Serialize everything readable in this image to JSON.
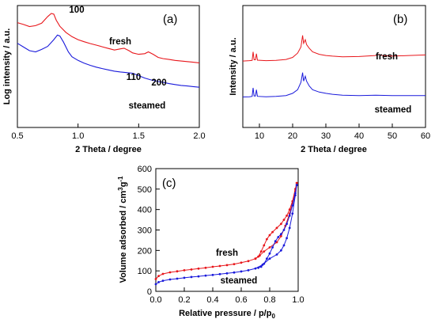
{
  "chart_data": [
    {
      "panel": "(a)",
      "type": "line",
      "xlabel": "2 Theta / degree",
      "ylabel": "Log intensity / a.u.",
      "xlim": [
        0.5,
        2.0
      ],
      "xticks": [
        "0.5",
        "1.0",
        "1.5",
        "2.0"
      ],
      "yticks_shown": false,
      "annotations": [
        "100",
        "110",
        "200"
      ],
      "series": [
        {
          "name": "fresh",
          "color": "#e8161b",
          "points": [
            [
              0.5,
              0.86
            ],
            [
              0.55,
              0.845
            ],
            [
              0.6,
              0.828
            ],
            [
              0.65,
              0.835
            ],
            [
              0.7,
              0.855
            ],
            [
              0.75,
              0.91
            ],
            [
              0.78,
              0.935
            ],
            [
              0.8,
              0.93
            ],
            [
              0.82,
              0.88
            ],
            [
              0.85,
              0.83
            ],
            [
              0.9,
              0.78
            ],
            [
              0.95,
              0.745
            ],
            [
              1.0,
              0.72
            ],
            [
              1.05,
              0.703
            ],
            [
              1.1,
              0.688
            ],
            [
              1.15,
              0.675
            ],
            [
              1.2,
              0.662
            ],
            [
              1.25,
              0.648
            ],
            [
              1.3,
              0.635
            ],
            [
              1.35,
              0.645
            ],
            [
              1.38,
              0.65
            ],
            [
              1.42,
              0.63
            ],
            [
              1.45,
              0.612
            ],
            [
              1.5,
              0.6
            ],
            [
              1.55,
              0.605
            ],
            [
              1.58,
              0.62
            ],
            [
              1.62,
              0.6
            ],
            [
              1.66,
              0.575
            ],
            [
              1.7,
              0.565
            ],
            [
              1.75,
              0.558
            ],
            [
              1.8,
              0.55
            ],
            [
              1.85,
              0.545
            ],
            [
              1.9,
              0.54
            ],
            [
              1.95,
              0.535
            ],
            [
              2.0,
              0.53
            ]
          ]
        },
        {
          "name": "steamed",
          "color": "#1a1adb",
          "points": [
            [
              0.5,
              0.69
            ],
            [
              0.55,
              0.66
            ],
            [
              0.6,
              0.63
            ],
            [
              0.65,
              0.62
            ],
            [
              0.7,
              0.64
            ],
            [
              0.75,
              0.665
            ],
            [
              0.8,
              0.72
            ],
            [
              0.83,
              0.758
            ],
            [
              0.85,
              0.75
            ],
            [
              0.88,
              0.7
            ],
            [
              0.92,
              0.62
            ],
            [
              0.95,
              0.58
            ],
            [
              1.0,
              0.55
            ],
            [
              1.05,
              0.527
            ],
            [
              1.1,
              0.51
            ],
            [
              1.15,
              0.495
            ],
            [
              1.2,
              0.483
            ],
            [
              1.25,
              0.472
            ],
            [
              1.3,
              0.462
            ],
            [
              1.35,
              0.455
            ],
            [
              1.4,
              0.45
            ],
            [
              1.45,
              0.445
            ],
            [
              1.5,
              0.425
            ],
            [
              1.55,
              0.405
            ],
            [
              1.6,
              0.39
            ],
            [
              1.65,
              0.38
            ],
            [
              1.7,
              0.37
            ],
            [
              1.75,
              0.36
            ],
            [
              1.8,
              0.352
            ],
            [
              1.85,
              0.345
            ],
            [
              1.9,
              0.34
            ],
            [
              1.95,
              0.335
            ],
            [
              2.0,
              0.33
            ]
          ]
        }
      ]
    },
    {
      "panel": "(b)",
      "type": "line",
      "xlabel": "2 Theta / degree",
      "ylabel": "Intensity / a.u.",
      "xlim": [
        5,
        60
      ],
      "xticks": [
        "10",
        "20",
        "30",
        "40",
        "50",
        "60"
      ],
      "yticks_shown": false,
      "series": [
        {
          "name": "fresh",
          "color": "#e8161b",
          "points": [
            [
              5,
              0.545
            ],
            [
              7,
              0.548
            ],
            [
              7.8,
              0.55
            ],
            [
              8.1,
              0.62
            ],
            [
              8.4,
              0.555
            ],
            [
              8.8,
              0.555
            ],
            [
              9.1,
              0.605
            ],
            [
              9.4,
              0.552
            ],
            [
              12,
              0.548
            ],
            [
              15,
              0.55
            ],
            [
              18,
              0.558
            ],
            [
              20,
              0.575
            ],
            [
              21.5,
              0.61
            ],
            [
              22.5,
              0.66
            ],
            [
              23,
              0.755
            ],
            [
              23.3,
              0.69
            ],
            [
              23.8,
              0.72
            ],
            [
              24.2,
              0.68
            ],
            [
              25,
              0.65
            ],
            [
              26,
              0.62
            ],
            [
              28,
              0.6
            ],
            [
              30,
              0.59
            ],
            [
              32,
              0.585
            ],
            [
              35,
              0.58
            ],
            [
              40,
              0.582
            ],
            [
              45,
              0.59
            ],
            [
              46,
              0.6
            ],
            [
              47,
              0.59
            ],
            [
              50,
              0.585
            ],
            [
              55,
              0.59
            ],
            [
              60,
              0.595
            ]
          ]
        },
        {
          "name": "steamed",
          "color": "#1a1adb",
          "points": [
            [
              5,
              0.25
            ],
            [
              7,
              0.252
            ],
            [
              7.8,
              0.255
            ],
            [
              8.1,
              0.325
            ],
            [
              8.4,
              0.258
            ],
            [
              8.8,
              0.258
            ],
            [
              9.1,
              0.31
            ],
            [
              9.4,
              0.255
            ],
            [
              12,
              0.252
            ],
            [
              15,
              0.255
            ],
            [
              18,
              0.262
            ],
            [
              20,
              0.28
            ],
            [
              21.5,
              0.31
            ],
            [
              22.5,
              0.37
            ],
            [
              23,
              0.45
            ],
            [
              23.3,
              0.38
            ],
            [
              23.8,
              0.42
            ],
            [
              24.2,
              0.38
            ],
            [
              25,
              0.34
            ],
            [
              26,
              0.31
            ],
            [
              28,
              0.29
            ],
            [
              30,
              0.28
            ],
            [
              32,
              0.272
            ],
            [
              35,
              0.265
            ],
            [
              40,
              0.262
            ],
            [
              45,
              0.265
            ],
            [
              50,
              0.262
            ],
            [
              55,
              0.262
            ],
            [
              60,
              0.262
            ]
          ]
        }
      ]
    },
    {
      "panel": "(c)",
      "type": "line",
      "xlabel": "Relative pressure / p/p",
      "xlabel_subscript": "0",
      "ylabel": "Volume adsorbed / cm",
      "ylabel_sup1": "3",
      "ylabel_mid": "g",
      "ylabel_sup2": "-1",
      "xlim": [
        0.0,
        1.0
      ],
      "ylim": [
        0,
        600
      ],
      "xticks": [
        "0.0",
        "0.2",
        "0.4",
        "0.6",
        "0.8",
        "1.0"
      ],
      "yticks": [
        "0",
        "100",
        "200",
        "300",
        "400",
        "500",
        "600"
      ],
      "series": [
        {
          "name": "fresh",
          "color": "#e8161b",
          "adsorption": [
            [
              0.0,
              60
            ],
            [
              0.02,
              75
            ],
            [
              0.05,
              85
            ],
            [
              0.1,
              93
            ],
            [
              0.15,
              98
            ],
            [
              0.2,
              103
            ],
            [
              0.25,
              107
            ],
            [
              0.3,
              111
            ],
            [
              0.35,
              115
            ],
            [
              0.4,
              120
            ],
            [
              0.45,
              124
            ],
            [
              0.5,
              128
            ],
            [
              0.55,
              133
            ],
            [
              0.6,
              140
            ],
            [
              0.65,
              148
            ],
            [
              0.7,
              160
            ],
            [
              0.73,
              175
            ],
            [
              0.76,
              195
            ],
            [
              0.8,
              215
            ],
            [
              0.85,
              240
            ],
            [
              0.88,
              270
            ],
            [
              0.91,
              320
            ],
            [
              0.94,
              380
            ],
            [
              0.96,
              430
            ],
            [
              0.98,
              490
            ],
            [
              0.99,
              530
            ]
          ],
          "desorption": [
            [
              0.99,
              530
            ],
            [
              0.98,
              500
            ],
            [
              0.96,
              440
            ],
            [
              0.94,
              400
            ],
            [
              0.92,
              370
            ],
            [
              0.9,
              350
            ],
            [
              0.88,
              330
            ],
            [
              0.85,
              310
            ],
            [
              0.82,
              290
            ],
            [
              0.8,
              275
            ],
            [
              0.78,
              255
            ],
            [
              0.76,
              225
            ],
            [
              0.74,
              195
            ],
            [
              0.72,
              170
            ],
            [
              0.7,
              160
            ]
          ]
        },
        {
          "name": "steamed",
          "color": "#1a1adb",
          "adsorption": [
            [
              0.0,
              35
            ],
            [
              0.02,
              45
            ],
            [
              0.05,
              52
            ],
            [
              0.1,
              58
            ],
            [
              0.15,
              62
            ],
            [
              0.2,
              66
            ],
            [
              0.25,
              70
            ],
            [
              0.3,
              73
            ],
            [
              0.35,
              77
            ],
            [
              0.4,
              80
            ],
            [
              0.45,
              84
            ],
            [
              0.5,
              88
            ],
            [
              0.55,
              92
            ],
            [
              0.6,
              97
            ],
            [
              0.65,
              103
            ],
            [
              0.7,
              112
            ],
            [
              0.75,
              130
            ],
            [
              0.8,
              160
            ],
            [
              0.85,
              180
            ],
            [
              0.88,
              200
            ],
            [
              0.9,
              225
            ],
            [
              0.92,
              260
            ],
            [
              0.94,
              310
            ],
            [
              0.96,
              380
            ],
            [
              0.98,
              470
            ],
            [
              0.99,
              520
            ]
          ],
          "desorption": [
            [
              0.99,
              520
            ],
            [
              0.98,
              480
            ],
            [
              0.96,
              420
            ],
            [
              0.94,
              370
            ],
            [
              0.92,
              330
            ],
            [
              0.9,
              300
            ],
            [
              0.88,
              280
            ],
            [
              0.86,
              265
            ],
            [
              0.84,
              245
            ],
            [
              0.82,
              215
            ],
            [
              0.8,
              185
            ],
            [
              0.78,
              160
            ],
            [
              0.76,
              135
            ],
            [
              0.74,
              120
            ],
            [
              0.72,
              115
            ]
          ]
        }
      ]
    }
  ]
}
